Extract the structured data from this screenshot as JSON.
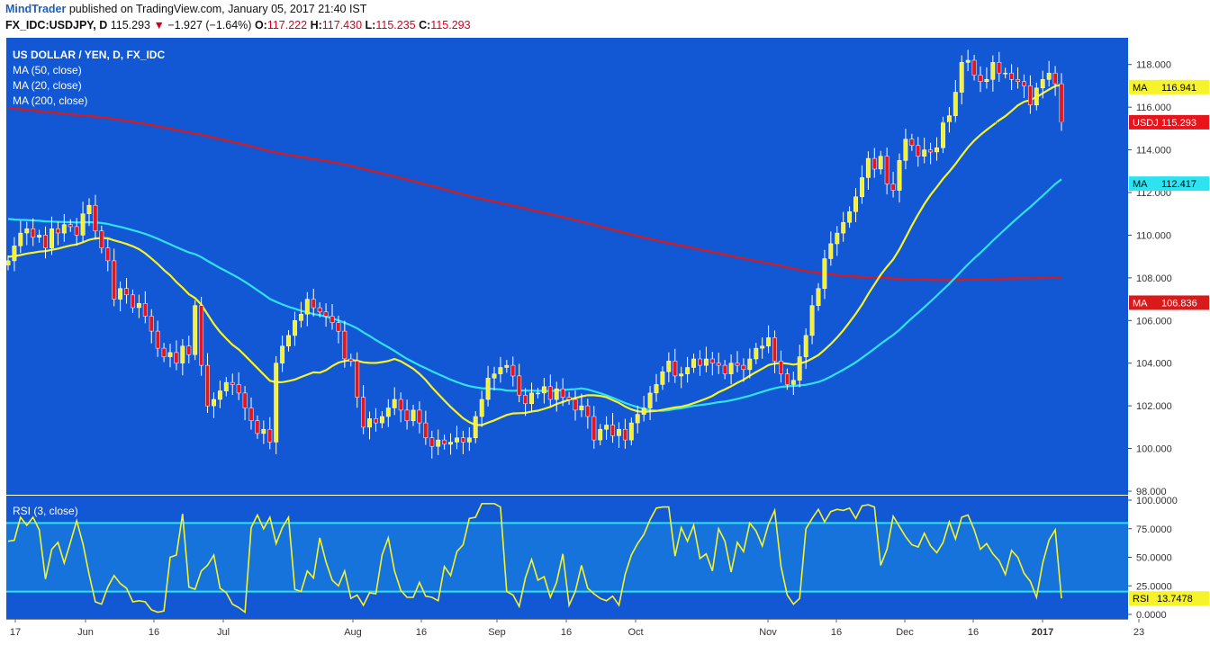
{
  "header": {
    "author": "MindTrader",
    "published_text": "published on TradingView.com, January 05, 2017 21:40 IST",
    "symbol_tf": "FX_IDC:USDJPY, D",
    "last": "115.293",
    "change": "−1.927 (−1.64%)",
    "o_label": "O:",
    "o_value": "117.222",
    "h_label": "H:",
    "h_value": "117.430",
    "l_label": "L:",
    "l_value": "115.235",
    "c_label": "C:",
    "c_value": "115.293",
    "change_arrow": "triangle-down-icon"
  },
  "legend": {
    "title": "US DOLLAR / YEN, D, FX_IDC",
    "items": [
      "MA (50, close)",
      "MA (20, close)",
      "MA (200, close)"
    ]
  },
  "rsi_legend": "RSI (3, close)",
  "colors": {
    "bg_blue": "#1257d4",
    "rsi_band": "#1673dc",
    "up": "#f7f32a",
    "down": "#e8141b",
    "ma50": "#2de3f0",
    "ma20": "#f7f32a",
    "ma200": "#d91a1a",
    "rsi": "#f7f32a",
    "rsi_levels": "#2de3f0"
  },
  "chart_data": {
    "type": "candlestick",
    "price_ylim": [
      98,
      119
    ],
    "price_ticks": [
      "118.000",
      "116.000",
      "114.000",
      "112.000",
      "110.000",
      "108.000",
      "106.000",
      "104.000",
      "102.000",
      "100.000",
      "98.000"
    ],
    "rsi_ylim": [
      0,
      100
    ],
    "rsi_ticks": [
      "100.0000",
      "75.0000",
      "50.0000",
      "25.0000",
      "0.0000"
    ],
    "rsi_levels": [
      80,
      20
    ],
    "x_ticks": [
      "17",
      "Jun",
      "16",
      "Jul",
      "Aug",
      "16",
      "Sep",
      "16",
      "Oct",
      "Nov",
      "16",
      "Dec",
      "16",
      "2017",
      "23"
    ],
    "grid": false,
    "last_price": 115.293,
    "price_labels": [
      {
        "name": "MA",
        "value": "116.941",
        "series": "MA (20, close)"
      },
      {
        "name": "USDJPY",
        "value": "115.293",
        "series": "price"
      },
      {
        "name": "MA",
        "value": "112.417",
        "series": "MA (50, close)"
      },
      {
        "name": "MA",
        "value": "106.836",
        "series": "MA (200, close)"
      }
    ],
    "rsi_label": {
      "name": "RSI",
      "value": "13.7478"
    },
    "close": [
      108.8,
      109.5,
      110.1,
      110.3,
      109.9,
      110.0,
      109.4,
      110.3,
      110.1,
      110.5,
      110.4,
      110.0,
      111.0,
      111.4,
      110.2,
      109.4,
      108.8,
      107.0,
      107.5,
      107.2,
      106.6,
      106.8,
      106.2,
      105.5,
      104.7,
      104.3,
      104.5,
      104.0,
      104.8,
      104.4,
      106.7,
      103.9,
      102.0,
      102.3,
      102.7,
      103.1,
      103.0,
      102.6,
      101.9,
      101.3,
      100.7,
      100.9,
      100.3,
      104.0,
      104.8,
      105.3,
      106.0,
      106.3,
      107.0,
      106.6,
      106.4,
      106.2,
      105.9,
      105.5,
      104.2,
      104.1,
      102.4,
      101.0,
      101.4,
      101.2,
      101.5,
      101.9,
      102.3,
      101.8,
      101.3,
      101.8,
      101.2,
      100.5,
      100.1,
      100.4,
      100.2,
      100.3,
      100.5,
      100.3,
      100.5,
      101.5,
      102.3,
      103.3,
      103.5,
      103.8,
      103.9,
      103.4,
      102.5,
      102.1,
      102.6,
      102.6,
      102.9,
      102.3,
      102.8,
      102.4,
      102.3,
      101.8,
      102.0,
      101.5,
      100.4,
      100.9,
      101.1,
      100.6,
      100.9,
      100.4,
      101.2,
      101.6,
      101.9,
      102.6,
      103.0,
      103.6,
      104.1,
      103.4,
      103.5,
      103.8,
      104.2,
      103.9,
      104.2,
      104.0,
      103.9,
      103.5,
      104.0,
      103.9,
      103.7,
      104.2,
      104.7,
      104.8,
      105.2,
      104.1,
      103.5,
      103.0,
      103.2,
      104.3,
      105.3,
      106.7,
      107.5,
      108.9,
      109.6,
      110.1,
      110.6,
      111.1,
      111.8,
      112.7,
      113.6,
      113.1,
      113.7,
      112.4,
      112.1,
      113.5,
      114.5,
      114.2,
      113.7,
      114.0,
      113.9,
      114.1,
      115.3,
      115.6,
      116.7,
      118.1,
      118.2,
      117.5,
      117.2,
      117.3,
      118.1,
      117.6,
      117.6,
      117.3,
      117.2,
      117.0,
      116.1,
      116.9,
      117.3,
      117.6,
      117.1,
      115.3
    ],
    "rsi": [
      64,
      65,
      85,
      78,
      85,
      74,
      31,
      57,
      63,
      45,
      63,
      82,
      62,
      35,
      11,
      9,
      24,
      34,
      27,
      23,
      11,
      12,
      11,
      4,
      2,
      3,
      50,
      52,
      88,
      24,
      22,
      38,
      43,
      52,
      23,
      19,
      9,
      6,
      2,
      76,
      87,
      75,
      85,
      62,
      76,
      85,
      22,
      20,
      38,
      32,
      67,
      46,
      30,
      25,
      38,
      14,
      17,
      8,
      19,
      18,
      52,
      67,
      38,
      21,
      15,
      15,
      28,
      16,
      15,
      12,
      42,
      34,
      55,
      61,
      84,
      85,
      97,
      97,
      97,
      94,
      20,
      17,
      7,
      32,
      48,
      30,
      33,
      15,
      28,
      53,
      8,
      20,
      43,
      23,
      18,
      14,
      12,
      16,
      8,
      35,
      52,
      62,
      70,
      83,
      93,
      94,
      94,
      51,
      76,
      64,
      78,
      49,
      53,
      38,
      75,
      64,
      37,
      63,
      55,
      80,
      73,
      60,
      79,
      91,
      42,
      17,
      9,
      14,
      75,
      84,
      92,
      81,
      90,
      92,
      91,
      93,
      84,
      95,
      96,
      94,
      43,
      57,
      86,
      77,
      68,
      61,
      59,
      71,
      60,
      54,
      63,
      81,
      66,
      85,
      87,
      74,
      57,
      62,
      53,
      47,
      35,
      56,
      50,
      36,
      29,
      15,
      45,
      65,
      74,
      14
    ]
  }
}
